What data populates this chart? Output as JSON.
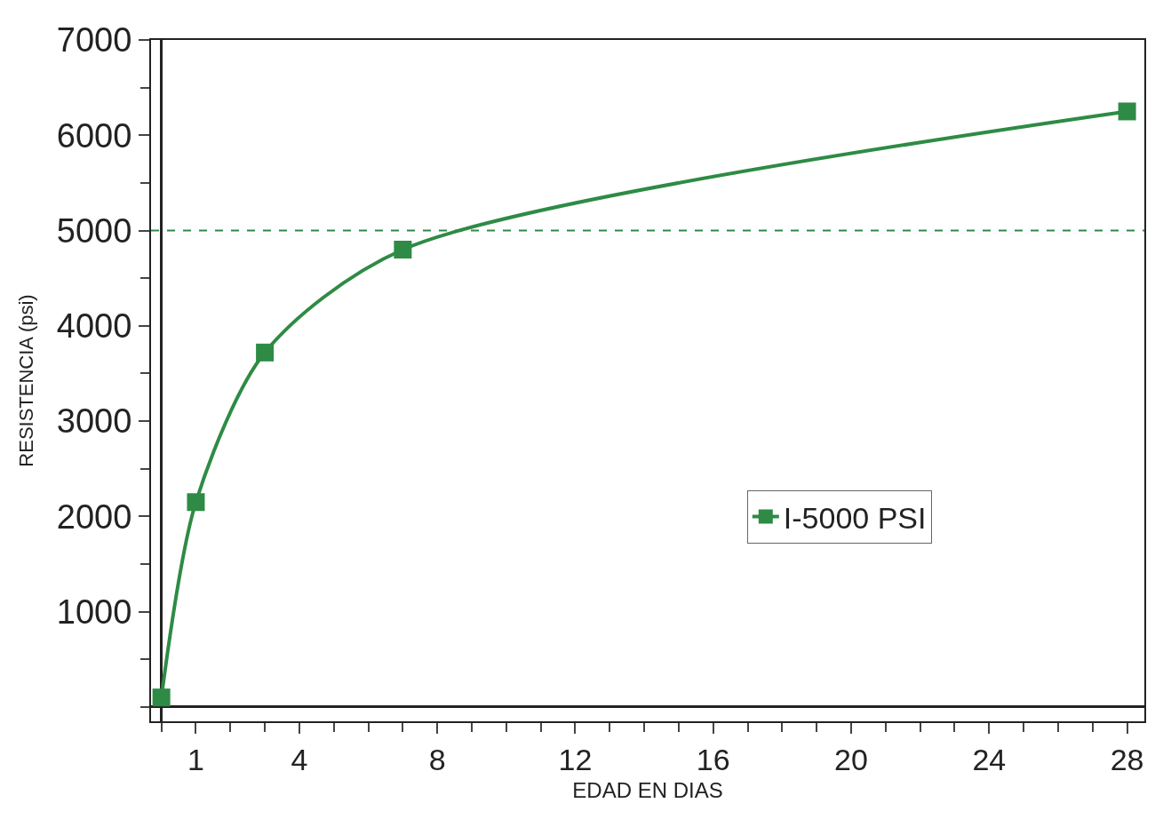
{
  "chart_data": {
    "type": "line",
    "xlabel": "EDAD EN DIAS",
    "ylabel": "RESISTENCIA (psi)",
    "x": [
      0,
      1,
      3,
      7,
      28
    ],
    "series": [
      {
        "name": "I-5000 PSI",
        "color": "#2e8b45",
        "values": [
          100,
          2150,
          3720,
          4800,
          6250
        ]
      }
    ],
    "xlim": [
      -0.3,
      28.5
    ],
    "xticks": [
      1,
      4,
      8,
      12,
      16,
      20,
      24,
      28
    ],
    "ylim": [
      -150,
      7000
    ],
    "yticks": [
      1000,
      2000,
      3000,
      4000,
      5000,
      6000,
      7000
    ],
    "ref_lines": [
      {
        "axis": "y",
        "value": 5000,
        "color": "#2e8b45",
        "line_style": "dashed"
      }
    ],
    "grid": false,
    "legend": "right",
    "marker": "square",
    "line_style": "solid"
  }
}
